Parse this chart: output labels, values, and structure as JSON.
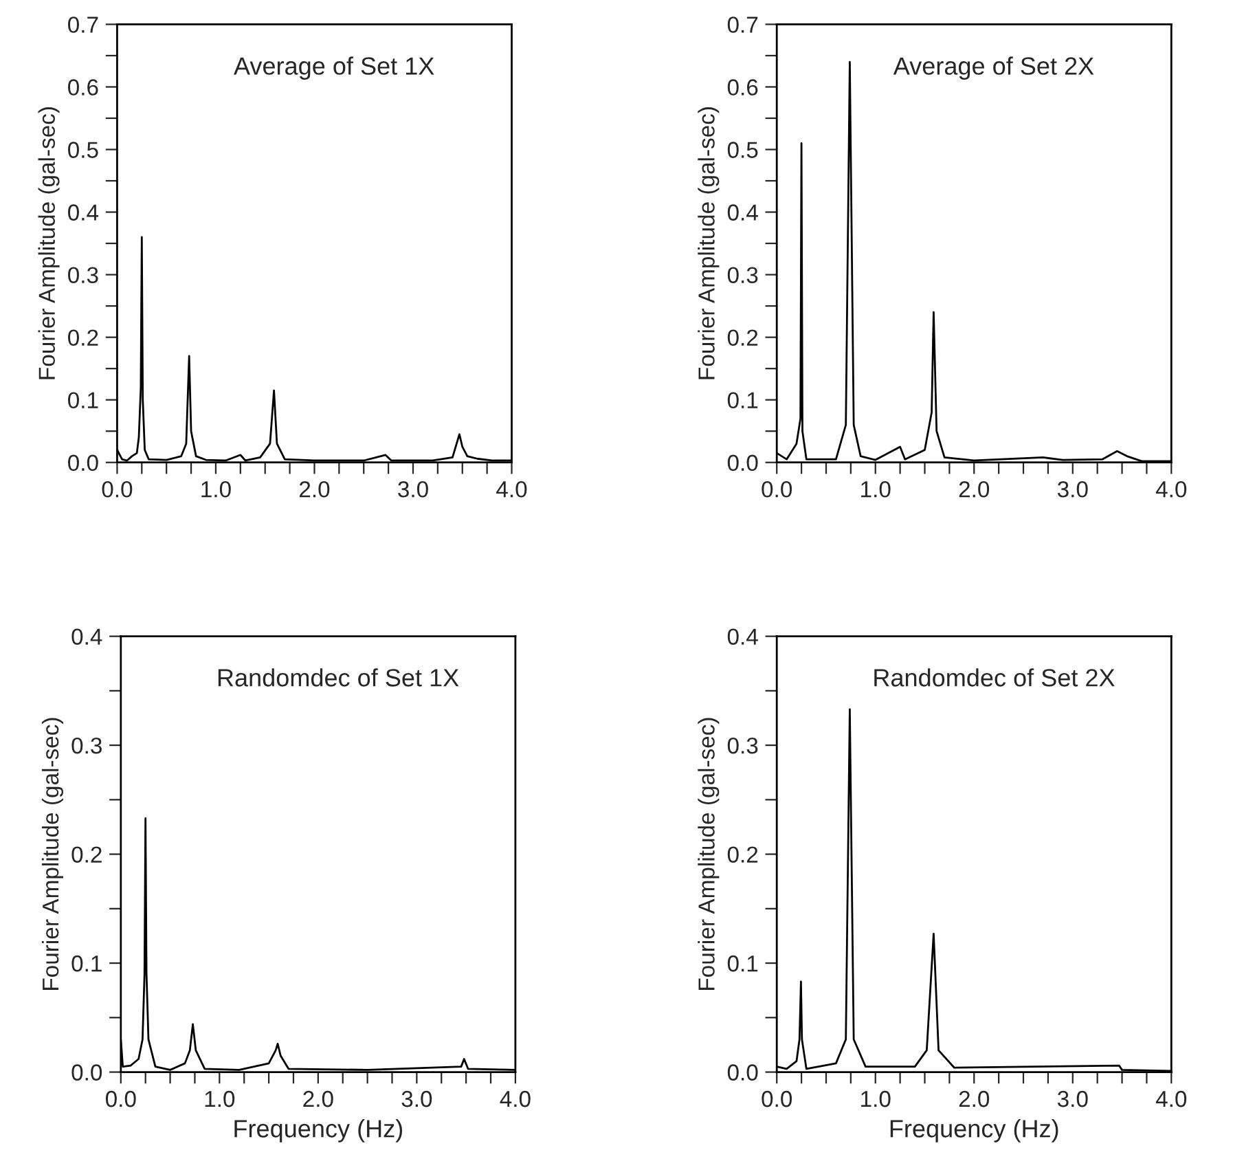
{
  "chart_data": [
    {
      "type": "line",
      "title": "Average of Set 1X",
      "ylabel": "Fourier Amplitude (gal-sec)",
      "xlim": [
        0,
        4
      ],
      "ylim": [
        0,
        0.7
      ],
      "grid": false,
      "legend": false,
      "tick_labels": "xy",
      "xticks": [
        {
          "value": 0,
          "label": "0.0"
        },
        {
          "value": 0.25,
          "label": null
        },
        {
          "value": 0.5,
          "label": null
        },
        {
          "value": 0.75,
          "label": null
        },
        {
          "value": 1,
          "label": "1.0"
        },
        {
          "value": 1.25,
          "label": null
        },
        {
          "value": 1.5,
          "label": null
        },
        {
          "value": 1.75,
          "label": null
        },
        {
          "value": 2,
          "label": "2.0"
        },
        {
          "value": 2.25,
          "label": null
        },
        {
          "value": 2.5,
          "label": null
        },
        {
          "value": 2.75,
          "label": null
        },
        {
          "value": 3,
          "label": "3.0"
        },
        {
          "value": 3.25,
          "label": null
        },
        {
          "value": 3.5,
          "label": null
        },
        {
          "value": 3.75,
          "label": null
        },
        {
          "value": 4,
          "label": "4.0"
        }
      ],
      "yticks": [
        {
          "value": 0,
          "label": "0.0"
        },
        {
          "value": 0.05,
          "label": null
        },
        {
          "value": 0.1,
          "label": "0.1"
        },
        {
          "value": 0.15,
          "label": null
        },
        {
          "value": 0.2,
          "label": "0.2"
        },
        {
          "value": 0.25,
          "label": null
        },
        {
          "value": 0.3,
          "label": "0.3"
        },
        {
          "value": 0.35,
          "label": null
        },
        {
          "value": 0.4,
          "label": "0.4"
        },
        {
          "value": 0.45,
          "label": null
        },
        {
          "value": 0.5,
          "label": "0.5"
        },
        {
          "value": 0.55,
          "label": null
        },
        {
          "value": 0.6,
          "label": "0.6"
        },
        {
          "value": 0.65,
          "label": null
        },
        {
          "value": 0.7,
          "label": "0.7"
        }
      ],
      "series": [
        {
          "color": "#000000",
          "x": [
            0,
            0.05,
            0.1,
            0.15,
            0.2,
            0.22,
            0.24,
            0.25,
            0.26,
            0.28,
            0.32,
            0.5,
            0.65,
            0.7,
            0.73,
            0.75,
            0.8,
            0.9,
            1.1,
            1.25,
            1.3,
            1.45,
            1.55,
            1.59,
            1.62,
            1.7,
            2.0,
            2.5,
            2.72,
            2.78,
            3.2,
            3.4,
            3.47,
            3.5,
            3.55,
            3.65,
            3.8,
            4.0
          ],
          "values": [
            0.02,
            0.005,
            0.003,
            0.01,
            0.015,
            0.04,
            0.12,
            0.36,
            0.1,
            0.02,
            0.005,
            0.004,
            0.01,
            0.03,
            0.17,
            0.05,
            0.01,
            0.004,
            0.003,
            0.012,
            0.003,
            0.008,
            0.03,
            0.115,
            0.03,
            0.005,
            0.003,
            0.003,
            0.012,
            0.003,
            0.003,
            0.008,
            0.045,
            0.025,
            0.01,
            0.006,
            0.003,
            0.003
          ]
        }
      ]
    },
    {
      "type": "line",
      "title": "Average of Set 2X",
      "ylabel": "Fourier Amplitude (gal-sec)",
      "xlim": [
        0,
        4
      ],
      "ylim": [
        0,
        0.7
      ],
      "grid": false,
      "legend": false,
      "tick_labels": "xy",
      "xticks": [
        {
          "value": 0,
          "label": "0.0"
        },
        {
          "value": 0.25,
          "label": null
        },
        {
          "value": 0.5,
          "label": null
        },
        {
          "value": 0.75,
          "label": null
        },
        {
          "value": 1,
          "label": "1.0"
        },
        {
          "value": 1.25,
          "label": null
        },
        {
          "value": 1.5,
          "label": null
        },
        {
          "value": 1.75,
          "label": null
        },
        {
          "value": 2,
          "label": "2.0"
        },
        {
          "value": 2.25,
          "label": null
        },
        {
          "value": 2.5,
          "label": null
        },
        {
          "value": 2.75,
          "label": null
        },
        {
          "value": 3,
          "label": "3.0"
        },
        {
          "value": 3.25,
          "label": null
        },
        {
          "value": 3.5,
          "label": null
        },
        {
          "value": 3.75,
          "label": null
        },
        {
          "value": 4,
          "label": "4.0"
        }
      ],
      "yticks": [
        {
          "value": 0,
          "label": "0.0"
        },
        {
          "value": 0.05,
          "label": null
        },
        {
          "value": 0.1,
          "label": "0.1"
        },
        {
          "value": 0.15,
          "label": null
        },
        {
          "value": 0.2,
          "label": "0.2"
        },
        {
          "value": 0.25,
          "label": null
        },
        {
          "value": 0.3,
          "label": "0.3"
        },
        {
          "value": 0.35,
          "label": null
        },
        {
          "value": 0.4,
          "label": "0.4"
        },
        {
          "value": 0.45,
          "label": null
        },
        {
          "value": 0.5,
          "label": "0.5"
        },
        {
          "value": 0.55,
          "label": null
        },
        {
          "value": 0.6,
          "label": "0.6"
        },
        {
          "value": 0.65,
          "label": null
        },
        {
          "value": 0.7,
          "label": "0.7"
        }
      ],
      "series": [
        {
          "color": "#000000",
          "x": [
            0,
            0.1,
            0.2,
            0.24,
            0.25,
            0.26,
            0.3,
            0.6,
            0.7,
            0.74,
            0.78,
            0.85,
            1.0,
            1.25,
            1.3,
            1.5,
            1.57,
            1.59,
            1.62,
            1.7,
            2.0,
            2.7,
            2.9,
            3.3,
            3.45,
            3.55,
            3.7,
            4.0
          ],
          "values": [
            0.015,
            0.005,
            0.03,
            0.07,
            0.51,
            0.05,
            0.005,
            0.005,
            0.06,
            0.64,
            0.06,
            0.01,
            0.004,
            0.025,
            0.005,
            0.02,
            0.08,
            0.24,
            0.05,
            0.008,
            0.003,
            0.008,
            0.004,
            0.005,
            0.018,
            0.01,
            0.002,
            0.002
          ]
        }
      ]
    },
    {
      "type": "line",
      "title": "Randomdec of Set 1X",
      "xlabel": "Frequency (Hz)",
      "ylabel": "Fourier Amplitude (gal-sec)",
      "xlim": [
        0,
        4
      ],
      "ylim": [
        0,
        0.4
      ],
      "grid": false,
      "legend": false,
      "tick_labels": "xy",
      "xticks": [
        {
          "value": 0,
          "label": "0.0"
        },
        {
          "value": 0.25,
          "label": null
        },
        {
          "value": 0.5,
          "label": null
        },
        {
          "value": 0.75,
          "label": null
        },
        {
          "value": 1,
          "label": "1.0"
        },
        {
          "value": 1.25,
          "label": null
        },
        {
          "value": 1.5,
          "label": null
        },
        {
          "value": 1.75,
          "label": null
        },
        {
          "value": 2,
          "label": "2.0"
        },
        {
          "value": 2.25,
          "label": null
        },
        {
          "value": 2.5,
          "label": null
        },
        {
          "value": 2.75,
          "label": null
        },
        {
          "value": 3,
          "label": "3.0"
        },
        {
          "value": 3.25,
          "label": null
        },
        {
          "value": 3.5,
          "label": null
        },
        {
          "value": 3.75,
          "label": null
        },
        {
          "value": 4,
          "label": "4.0"
        }
      ],
      "yticks": [
        {
          "value": 0,
          "label": "0.0"
        },
        {
          "value": 0.05,
          "label": null
        },
        {
          "value": 0.1,
          "label": "0.1"
        },
        {
          "value": 0.15,
          "label": null
        },
        {
          "value": 0.2,
          "label": "0.2"
        },
        {
          "value": 0.25,
          "label": null
        },
        {
          "value": 0.3,
          "label": "0.3"
        },
        {
          "value": 0.35,
          "label": null
        },
        {
          "value": 0.4,
          "label": "0.4"
        }
      ],
      "series": [
        {
          "color": "#000000",
          "x": [
            0,
            0.02,
            0.1,
            0.18,
            0.22,
            0.24,
            0.25,
            0.26,
            0.28,
            0.35,
            0.5,
            0.65,
            0.7,
            0.73,
            0.76,
            0.85,
            1.2,
            1.5,
            1.57,
            1.59,
            1.62,
            1.7,
            2.5,
            3.45,
            3.48,
            3.52,
            4.0
          ],
          "values": [
            0.03,
            0.005,
            0.006,
            0.012,
            0.03,
            0.09,
            0.233,
            0.09,
            0.03,
            0.005,
            0.002,
            0.008,
            0.02,
            0.044,
            0.02,
            0.003,
            0.002,
            0.008,
            0.02,
            0.026,
            0.015,
            0.003,
            0.002,
            0.005,
            0.012,
            0.003,
            0.002
          ]
        }
      ]
    },
    {
      "type": "line",
      "title": "Randomdec of Set 2X",
      "xlabel": "Frequency (Hz)",
      "ylabel": "Fourier Amplitude (gal-sec)",
      "xlim": [
        0,
        4
      ],
      "ylim": [
        0,
        0.4
      ],
      "grid": false,
      "legend": false,
      "tick_labels": "xy",
      "xticks": [
        {
          "value": 0,
          "label": "0.0"
        },
        {
          "value": 0.25,
          "label": null
        },
        {
          "value": 0.5,
          "label": null
        },
        {
          "value": 0.75,
          "label": null
        },
        {
          "value": 1,
          "label": "1.0"
        },
        {
          "value": 1.25,
          "label": null
        },
        {
          "value": 1.5,
          "label": null
        },
        {
          "value": 1.75,
          "label": null
        },
        {
          "value": 2,
          "label": "2.0"
        },
        {
          "value": 2.25,
          "label": null
        },
        {
          "value": 2.5,
          "label": null
        },
        {
          "value": 2.75,
          "label": null
        },
        {
          "value": 3,
          "label": "3.0"
        },
        {
          "value": 3.25,
          "label": null
        },
        {
          "value": 3.5,
          "label": null
        },
        {
          "value": 3.75,
          "label": null
        },
        {
          "value": 4,
          "label": "4.0"
        }
      ],
      "yticks": [
        {
          "value": 0,
          "label": "0.0"
        },
        {
          "value": 0.05,
          "label": null
        },
        {
          "value": 0.1,
          "label": "0.1"
        },
        {
          "value": 0.15,
          "label": null
        },
        {
          "value": 0.2,
          "label": "0.2"
        },
        {
          "value": 0.25,
          "label": null
        },
        {
          "value": 0.3,
          "label": "0.3"
        },
        {
          "value": 0.35,
          "label": null
        },
        {
          "value": 0.4,
          "label": "0.4"
        }
      ],
      "series": [
        {
          "color": "#000000",
          "x": [
            0,
            0.1,
            0.2,
            0.23,
            0.245,
            0.255,
            0.3,
            0.6,
            0.7,
            0.74,
            0.78,
            0.9,
            1.4,
            1.52,
            1.59,
            1.64,
            1.8,
            3.47,
            3.5,
            4.0
          ],
          "values": [
            0.005,
            0.003,
            0.01,
            0.03,
            0.083,
            0.03,
            0.003,
            0.008,
            0.03,
            0.333,
            0.03,
            0.005,
            0.005,
            0.02,
            0.127,
            0.02,
            0.004,
            0.006,
            0.002,
            0.001
          ]
        }
      ]
    }
  ]
}
